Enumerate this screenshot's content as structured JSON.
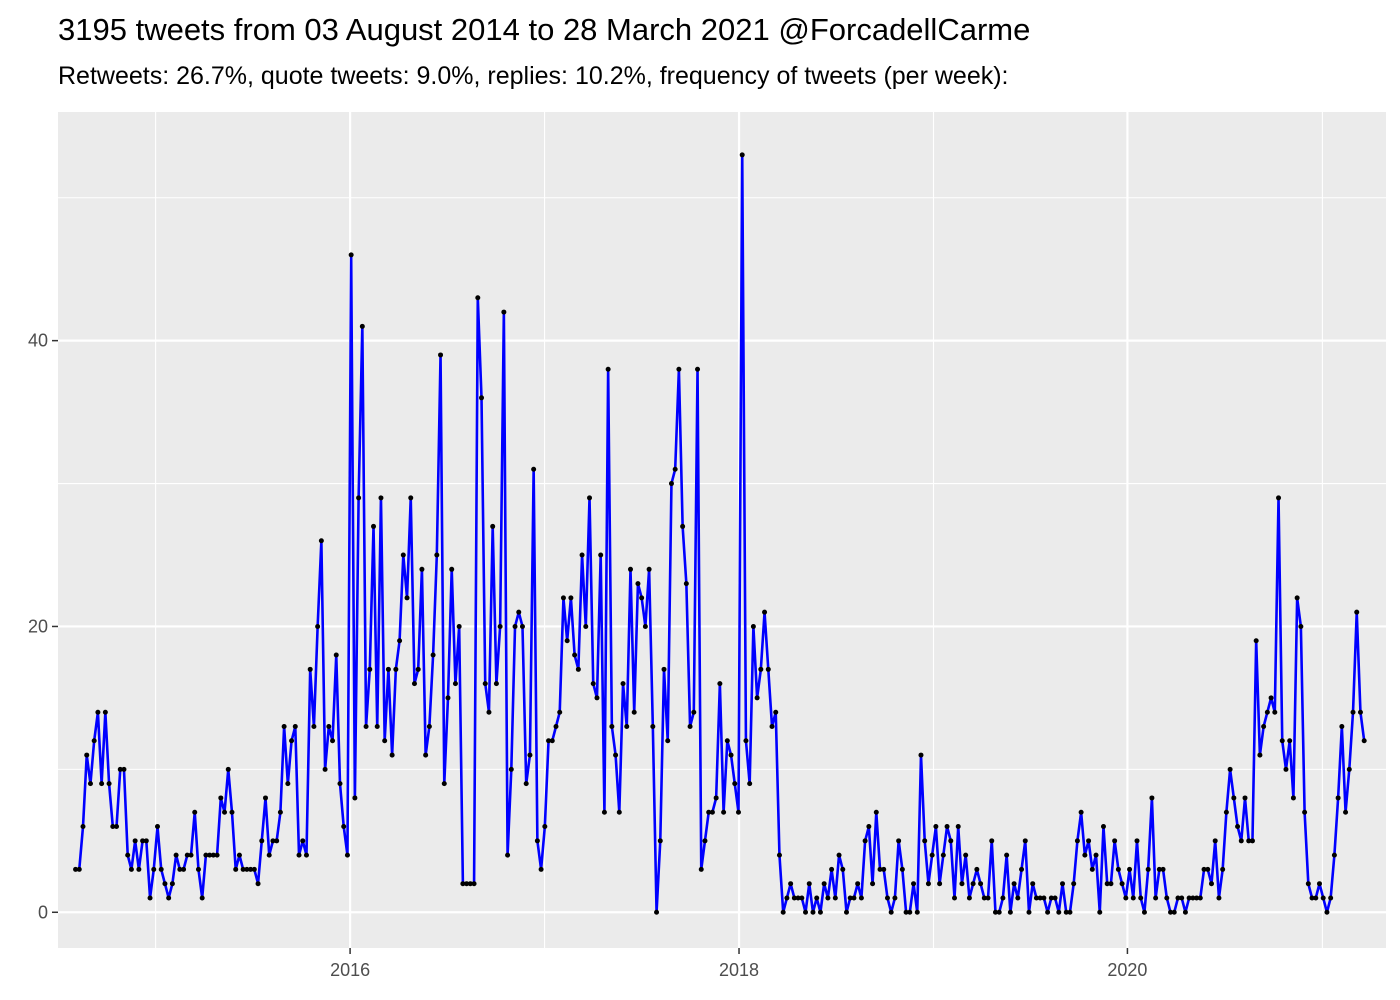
{
  "chart_data": {
    "type": "line",
    "title": "3195 tweets from 03 August 2014 to 28 March 2021 @ForcadellCarme",
    "subtitle": "Retweets: 26.7%, quote tweets: 9.0%, replies: 10.2%, frequency of tweets (per week):",
    "xlabel": "",
    "ylabel": "",
    "x_range": [
      "2014-07-01",
      "2021-05-01"
    ],
    "ylim": [
      -2.5,
      56
    ],
    "y_ticks": [
      0,
      20,
      40
    ],
    "x_ticks": [
      {
        "label": "2016",
        "date": "2016-01-01"
      },
      {
        "label": "2018",
        "date": "2018-01-01"
      },
      {
        "label": "2020",
        "date": "2020-01-01"
      }
    ],
    "grid": true,
    "legend": "none",
    "line_color": "#0000ff",
    "point_color": "#000000",
    "panel_color": "#ebebeb",
    "series": [
      {
        "start_date": "2014-08-03",
        "interval_days": 7,
        "values": [
          3,
          3,
          6,
          11,
          9,
          12,
          14,
          9,
          14,
          9,
          6,
          6,
          10,
          10,
          4,
          3,
          5,
          3,
          5,
          5,
          1,
          3,
          6,
          3,
          2,
          1,
          2,
          4,
          3,
          3,
          4,
          4,
          7,
          3,
          1,
          4,
          4,
          4,
          4,
          8,
          7,
          10,
          7,
          3,
          4,
          3,
          3,
          3,
          3,
          2,
          5,
          8,
          4,
          5,
          5,
          7,
          13,
          9,
          12,
          13,
          4,
          5,
          4,
          17,
          13,
          20,
          26,
          10,
          13,
          12,
          18,
          9,
          6,
          4,
          46,
          8,
          29,
          41,
          13,
          17,
          27,
          13,
          29,
          12,
          17,
          11,
          17,
          19,
          25,
          22,
          29,
          16,
          17,
          24,
          11,
          13,
          18,
          25,
          39,
          9,
          15,
          24,
          16,
          20,
          2,
          2,
          2,
          2,
          43,
          36,
          16,
          14,
          27,
          16,
          20,
          42,
          4,
          10,
          20,
          21,
          20,
          9,
          11,
          31,
          5,
          3,
          6,
          12,
          12,
          13,
          14,
          22,
          19,
          22,
          18,
          17,
          25,
          20,
          29,
          16,
          15,
          25,
          7,
          38,
          13,
          11,
          7,
          16,
          13,
          24,
          14,
          23,
          22,
          20,
          24,
          13,
          0,
          5,
          17,
          12,
          30,
          31,
          38,
          27,
          23,
          13,
          14,
          38,
          3,
          5,
          7,
          7,
          8,
          16,
          7,
          12,
          11,
          9,
          7,
          53,
          12,
          9,
          20,
          15,
          17,
          21,
          17,
          13,
          14,
          4,
          0,
          1,
          2,
          1,
          1,
          1,
          0,
          2,
          0,
          1,
          0,
          2,
          1,
          3,
          1,
          4,
          3,
          0,
          1,
          1,
          2,
          1,
          5,
          6,
          2,
          7,
          3,
          3,
          1,
          0,
          1,
          5,
          3,
          0,
          0,
          2,
          0,
          11,
          5,
          2,
          4,
          6,
          2,
          4,
          6,
          5,
          1,
          6,
          2,
          4,
          1,
          2,
          3,
          2,
          1,
          1,
          5,
          0,
          0,
          1,
          4,
          0,
          2,
          1,
          3,
          5,
          0,
          2,
          1,
          1,
          1,
          0,
          1,
          1,
          0,
          2,
          0,
          0,
          2,
          5,
          7,
          4,
          5,
          3,
          4,
          0,
          6,
          2,
          2,
          5,
          3,
          2,
          1,
          3,
          1,
          5,
          1,
          0,
          3,
          8,
          1,
          3,
          3,
          1,
          0,
          0,
          1,
          1,
          0,
          1,
          1,
          1,
          1,
          3,
          3,
          2,
          5,
          1,
          3,
          7,
          10,
          8,
          6,
          5,
          8,
          5,
          5,
          19,
          11,
          13,
          14,
          15,
          14,
          29,
          12,
          10,
          12,
          8,
          22,
          20,
          7,
          2,
          1,
          1,
          2,
          1,
          0,
          1,
          4,
          8,
          13,
          7,
          10,
          14,
          21,
          14,
          12
        ]
      }
    ]
  }
}
